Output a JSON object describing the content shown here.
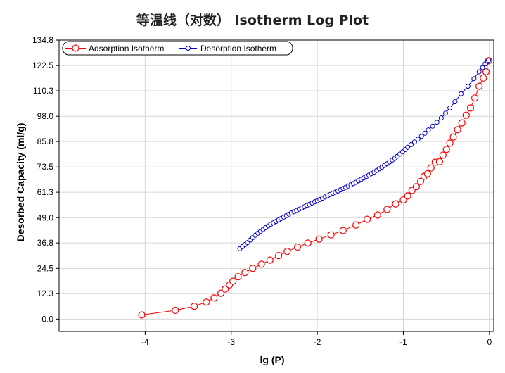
{
  "chart_data": {
    "type": "scatter",
    "title": "等温线（对数） Isotherm Log Plot",
    "xlabel": "lg (P)",
    "ylabel": "Desorbed Capacity (ml/g)",
    "xlim": [
      -5,
      0.05
    ],
    "ylim": [
      -6,
      134.8
    ],
    "x_ticks": [
      -4,
      -3,
      -2,
      -1,
      0
    ],
    "x_tick_labels": [
      "-4",
      "-3",
      "-2",
      "-1",
      "0"
    ],
    "y_ticks": [
      0.0,
      12.3,
      24.5,
      36.8,
      49.0,
      61.3,
      73.5,
      85.8,
      98.0,
      110.3,
      122.5,
      134.8
    ],
    "y_tick_labels": [
      "0.0",
      "12.3",
      "24.5",
      "36.8",
      "49.0",
      "61.3",
      "73.5",
      "85.8",
      "98.0",
      "110.3",
      "122.5",
      "134.8"
    ],
    "grid": true,
    "legend_position": "top-left",
    "series": [
      {
        "name": "Adsorption Isotherm",
        "color": "#ff0000",
        "marker": "circle-large",
        "x": [
          -4.04,
          -3.65,
          -3.43,
          -3.29,
          -3.2,
          -3.12,
          -3.07,
          -3.02,
          -2.98,
          -2.92,
          -2.84,
          -2.75,
          -2.65,
          -2.55,
          -2.45,
          -2.35,
          -2.23,
          -2.11,
          -1.98,
          -1.84,
          -1.7,
          -1.55,
          -1.42,
          -1.3,
          -1.19,
          -1.09,
          -1.0,
          -0.95,
          -0.9,
          -0.85,
          -0.8,
          -0.76,
          -0.72,
          -0.68,
          -0.63,
          -0.58,
          -0.54,
          -0.5,
          -0.46,
          -0.42,
          -0.37,
          -0.32,
          -0.27,
          -0.22,
          -0.17,
          -0.12,
          -0.07,
          -0.04,
          -0.01
        ],
        "y": [
          2.0,
          4.2,
          6.2,
          8.2,
          10.2,
          12.5,
          14.5,
          16.5,
          18.3,
          20.5,
          22.5,
          24.5,
          26.5,
          28.5,
          30.7,
          32.7,
          34.8,
          36.7,
          38.7,
          40.7,
          42.8,
          45.5,
          48.2,
          50.3,
          53.0,
          55.7,
          57.6,
          59.5,
          62.2,
          64.0,
          66.5,
          69.0,
          70.2,
          73.0,
          75.8,
          76.0,
          79.2,
          82.0,
          85.0,
          88.0,
          91.5,
          94.8,
          98.5,
          102.0,
          106.8,
          112.5,
          116.5,
          119.5,
          124.8
        ]
      },
      {
        "name": "Desorption Isotherm",
        "color": "#0000cc",
        "marker": "circle-small",
        "x": [
          -2.9,
          -2.87,
          -2.84,
          -2.81,
          -2.78,
          -2.75,
          -2.72,
          -2.69,
          -2.66,
          -2.63,
          -2.6,
          -2.57,
          -2.54,
          -2.51,
          -2.48,
          -2.45,
          -2.42,
          -2.39,
          -2.36,
          -2.33,
          -2.3,
          -2.27,
          -2.24,
          -2.21,
          -2.18,
          -2.15,
          -2.12,
          -2.09,
          -2.06,
          -2.03,
          -2.0,
          -1.97,
          -1.94,
          -1.91,
          -1.88,
          -1.85,
          -1.82,
          -1.79,
          -1.76,
          -1.73,
          -1.7,
          -1.67,
          -1.64,
          -1.61,
          -1.58,
          -1.55,
          -1.52,
          -1.49,
          -1.46,
          -1.43,
          -1.4,
          -1.37,
          -1.34,
          -1.31,
          -1.28,
          -1.25,
          -1.22,
          -1.19,
          -1.16,
          -1.13,
          -1.1,
          -1.07,
          -1.04,
          -1.01,
          -0.98,
          -0.95,
          -0.91,
          -0.87,
          -0.83,
          -0.79,
          -0.75,
          -0.71,
          -0.66,
          -0.61,
          -0.56,
          -0.51,
          -0.46,
          -0.4,
          -0.33,
          -0.25,
          -0.18,
          -0.12,
          -0.08,
          -0.05,
          -0.02,
          -0.01
        ],
        "y": [
          34.0,
          35.0,
          36.0,
          37.0,
          38.2,
          39.4,
          40.5,
          41.5,
          42.4,
          43.3,
          44.2,
          45.0,
          45.8,
          46.5,
          47.2,
          47.9,
          48.6,
          49.3,
          50.0,
          50.7,
          51.3,
          51.9,
          52.5,
          53.1,
          53.7,
          54.3,
          54.9,
          55.5,
          56.1,
          56.7,
          57.2,
          57.8,
          58.4,
          59.0,
          59.6,
          60.2,
          60.8,
          61.3,
          61.9,
          62.5,
          63.1,
          63.7,
          64.3,
          64.9,
          65.5,
          66.1,
          66.8,
          67.5,
          68.2,
          68.9,
          69.6,
          70.3,
          71.0,
          71.8,
          72.6,
          73.4,
          74.2,
          75.0,
          75.9,
          76.8,
          77.7,
          78.7,
          79.7,
          80.8,
          81.9,
          83.0,
          84.3,
          85.6,
          86.9,
          88.3,
          89.8,
          91.4,
          93.2,
          95.1,
          97.2,
          99.5,
          102.0,
          105.0,
          108.8,
          112.5,
          116.2,
          119.5,
          121.5,
          123.3,
          124.5,
          125.0
        ]
      }
    ]
  }
}
